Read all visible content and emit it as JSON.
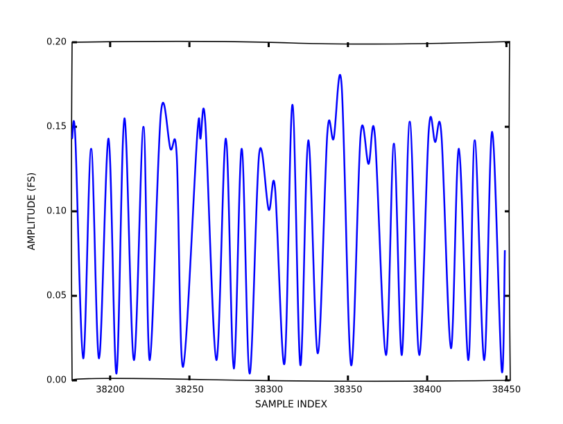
{
  "chart_data": {
    "type": "line",
    "xlabel": "SAMPLE INDEX",
    "ylabel": "AMPLITUDE (FS)",
    "xlim": [
      38176,
      38452
    ],
    "ylim": [
      0,
      0.2
    ],
    "xticks": [
      38200,
      38250,
      38300,
      38350,
      38400,
      38450
    ],
    "yticks": [
      {
        "value": 0,
        "label": "0.00"
      },
      {
        "value": 0.05,
        "label": "0.05"
      },
      {
        "value": 0.1,
        "label": "0.10"
      },
      {
        "value": 0.15,
        "label": "0.15"
      },
      {
        "value": 0.2,
        "label": "0.20"
      }
    ],
    "grid": false,
    "x": [
      38176,
      38178,
      38183,
      38188,
      38193,
      38199,
      38204,
      38209,
      38215,
      38221,
      38225,
      38232,
      38238,
      38242,
      38246,
      38255,
      38257,
      38260,
      38267,
      38273,
      38278,
      38283,
      38288,
      38294,
      38300,
      38304,
      38310,
      38315,
      38320,
      38325,
      38331,
      38337,
      38341,
      38346,
      38352,
      38358,
      38363,
      38367,
      38374,
      38379,
      38384,
      38389,
      38395,
      38401,
      38405,
      38409,
      38415,
      38420,
      38426,
      38430,
      38436,
      38441,
      38447,
      38449
    ],
    "series": [
      {
        "color": "#0000ff",
        "values": [
          0.143,
          0.144,
          0.013,
          0.137,
          0.013,
          0.143,
          0.004,
          0.155,
          0.012,
          0.15,
          0.012,
          0.158,
          0.137,
          0.133,
          0.008,
          0.146,
          0.143,
          0.153,
          0.012,
          0.143,
          0.007,
          0.137,
          0.004,
          0.134,
          0.101,
          0.114,
          0.01,
          0.163,
          0.009,
          0.142,
          0.016,
          0.146,
          0.143,
          0.175,
          0.009,
          0.145,
          0.128,
          0.145,
          0.015,
          0.14,
          0.015,
          0.153,
          0.015,
          0.148,
          0.141,
          0.145,
          0.019,
          0.137,
          0.012,
          0.142,
          0.012,
          0.147,
          0.006,
          0.077
        ]
      }
    ]
  }
}
